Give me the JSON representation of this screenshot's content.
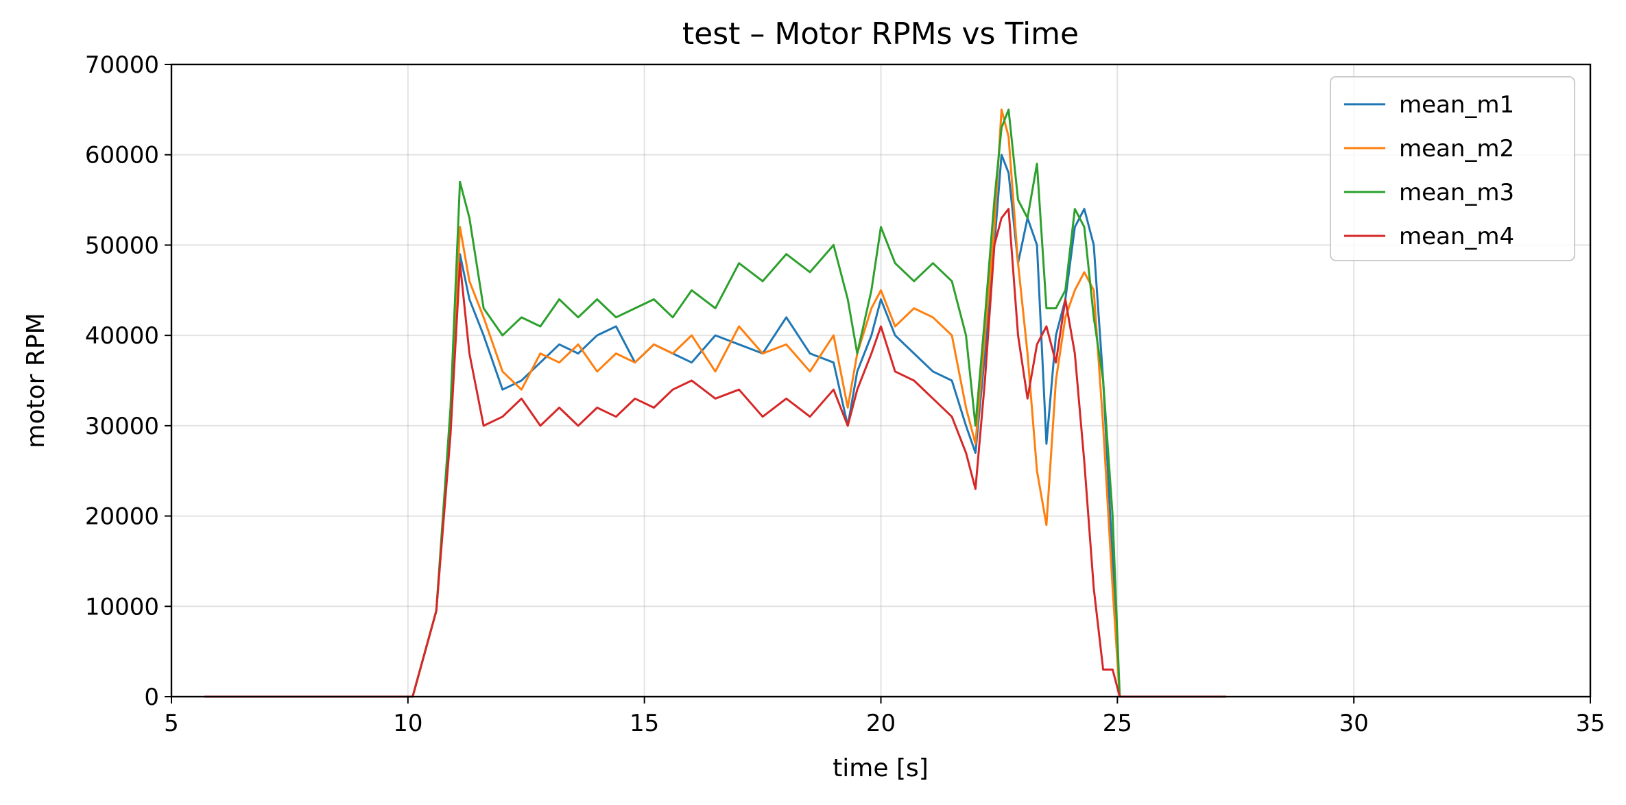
{
  "chart_data": {
    "type": "line",
    "title": "test – Motor RPMs vs Time",
    "xlabel": "time [s]",
    "ylabel": "motor RPM",
    "xlim": [
      5,
      35
    ],
    "ylim": [
      0,
      70000
    ],
    "xticks": [
      5,
      10,
      15,
      20,
      25,
      30,
      35
    ],
    "yticks": [
      0,
      10000,
      20000,
      30000,
      40000,
      50000,
      60000,
      70000
    ],
    "xtick_labels": [
      "5",
      "10",
      "15",
      "20",
      "25",
      "30",
      "35"
    ],
    "ytick_labels": [
      "0",
      "10000",
      "20000",
      "30000",
      "40000",
      "50000",
      "60000",
      "70000"
    ],
    "grid": true,
    "legend_position": "top-right",
    "series": [
      {
        "name": "mean_m1",
        "color": "#1f77b4",
        "x": [
          5.7,
          10.1,
          10.6,
          10.9,
          11.1,
          11.3,
          11.6,
          12.0,
          12.4,
          12.8,
          13.2,
          13.6,
          14.0,
          14.4,
          14.8,
          15.2,
          15.6,
          16.0,
          16.5,
          17.0,
          17.5,
          18.0,
          18.5,
          19.0,
          19.3,
          19.5,
          19.8,
          20.0,
          20.3,
          20.7,
          21.1,
          21.5,
          21.8,
          22.0,
          22.2,
          22.4,
          22.55,
          22.7,
          22.9,
          23.1,
          23.3,
          23.5,
          23.7,
          23.9,
          24.1,
          24.3,
          24.5,
          24.7,
          24.9,
          25.05,
          25.2,
          27.3
        ],
        "y": [
          0,
          0,
          9500,
          30000,
          49000,
          44000,
          40000,
          34000,
          35000,
          37000,
          39000,
          38000,
          40000,
          41000,
          37000,
          39000,
          38000,
          37000,
          40000,
          39000,
          38000,
          42000,
          38000,
          37000,
          30000,
          36000,
          40000,
          44000,
          40000,
          38000,
          36000,
          35000,
          30000,
          27000,
          38000,
          50000,
          60000,
          58000,
          48000,
          53000,
          50000,
          28000,
          40000,
          44000,
          52000,
          54000,
          50000,
          35000,
          15000,
          0,
          0,
          0
        ]
      },
      {
        "name": "mean_m2",
        "color": "#ff7f0e",
        "x": [
          5.7,
          10.1,
          10.6,
          10.9,
          11.1,
          11.3,
          11.6,
          12.0,
          12.4,
          12.8,
          13.2,
          13.6,
          14.0,
          14.4,
          14.8,
          15.2,
          15.6,
          16.0,
          16.5,
          17.0,
          17.5,
          18.0,
          18.5,
          19.0,
          19.3,
          19.5,
          19.8,
          20.0,
          20.3,
          20.7,
          21.1,
          21.5,
          21.8,
          22.0,
          22.2,
          22.4,
          22.55,
          22.7,
          22.9,
          23.1,
          23.3,
          23.5,
          23.7,
          23.9,
          24.1,
          24.3,
          24.5,
          24.7,
          24.9,
          25.05,
          25.2,
          27.3
        ],
        "y": [
          0,
          0,
          9500,
          30000,
          52000,
          46000,
          42000,
          36000,
          34000,
          38000,
          37000,
          39000,
          36000,
          38000,
          37000,
          39000,
          38000,
          40000,
          36000,
          41000,
          38000,
          39000,
          36000,
          40000,
          32000,
          38000,
          43000,
          45000,
          41000,
          43000,
          42000,
          40000,
          32000,
          28000,
          40000,
          52000,
          65000,
          62000,
          48000,
          38000,
          25000,
          19000,
          35000,
          42000,
          45000,
          47000,
          45000,
          30000,
          12000,
          0,
          0,
          0
        ]
      },
      {
        "name": "mean_m3",
        "color": "#2ca02c",
        "x": [
          5.7,
          10.1,
          10.6,
          10.9,
          11.1,
          11.3,
          11.6,
          12.0,
          12.4,
          12.8,
          13.2,
          13.6,
          14.0,
          14.4,
          14.8,
          15.2,
          15.6,
          16.0,
          16.5,
          17.0,
          17.5,
          18.0,
          18.5,
          19.0,
          19.3,
          19.5,
          19.8,
          20.0,
          20.3,
          20.7,
          21.1,
          21.5,
          21.8,
          22.0,
          22.2,
          22.4,
          22.55,
          22.7,
          22.9,
          23.1,
          23.3,
          23.5,
          23.7,
          23.9,
          24.1,
          24.3,
          24.5,
          24.7,
          24.9,
          25.05,
          25.2,
          27.3
        ],
        "y": [
          0,
          0,
          9500,
          32000,
          57000,
          53000,
          43000,
          40000,
          42000,
          41000,
          44000,
          42000,
          44000,
          42000,
          43000,
          44000,
          42000,
          45000,
          43000,
          48000,
          46000,
          49000,
          47000,
          50000,
          44000,
          38000,
          45000,
          52000,
          48000,
          46000,
          48000,
          46000,
          40000,
          30000,
          42000,
          55000,
          63000,
          65000,
          55000,
          53000,
          59000,
          43000,
          43000,
          45000,
          54000,
          52000,
          42000,
          35000,
          20000,
          0,
          0,
          0
        ]
      },
      {
        "name": "mean_m4",
        "color": "#d62728",
        "x": [
          5.7,
          10.1,
          10.6,
          10.9,
          11.1,
          11.3,
          11.6,
          12.0,
          12.4,
          12.8,
          13.2,
          13.6,
          14.0,
          14.4,
          14.8,
          15.2,
          15.6,
          16.0,
          16.5,
          17.0,
          17.5,
          18.0,
          18.5,
          19.0,
          19.3,
          19.5,
          19.8,
          20.0,
          20.3,
          20.7,
          21.1,
          21.5,
          21.8,
          22.0,
          22.2,
          22.4,
          22.55,
          22.7,
          22.9,
          23.1,
          23.3,
          23.5,
          23.7,
          23.9,
          24.1,
          24.3,
          24.5,
          24.7,
          24.9,
          25.05,
          25.2,
          27.3
        ],
        "y": [
          0,
          0,
          9500,
          29000,
          48000,
          38000,
          30000,
          31000,
          33000,
          30000,
          32000,
          30000,
          32000,
          31000,
          33000,
          32000,
          34000,
          35000,
          33000,
          34000,
          31000,
          33000,
          31000,
          34000,
          30000,
          34000,
          38000,
          41000,
          36000,
          35000,
          33000,
          31000,
          27000,
          23000,
          35000,
          50000,
          53000,
          54000,
          40000,
          33000,
          39000,
          41000,
          37000,
          44000,
          38000,
          26000,
          12000,
          3000,
          3000,
          0,
          0,
          0
        ]
      }
    ]
  }
}
